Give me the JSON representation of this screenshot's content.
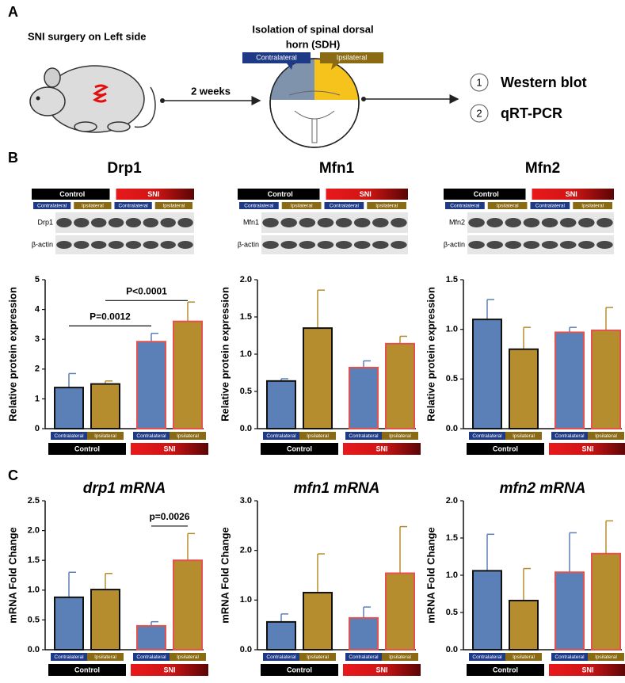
{
  "panel_labels": [
    "A",
    "B",
    "C"
  ],
  "panel_a": {
    "left": "SNI surgery on Left side",
    "arrow": "2 weeks",
    "center_lines": [
      "Isolation of spinal dorsal",
      "horn (SDH)"
    ],
    "contralateral": "Contralateral",
    "ipsilateral": "Ipsilateral",
    "methods": [
      {
        "number": "1",
        "label": "Western blot"
      },
      {
        "number": "2",
        "label": "qRT-PCR"
      }
    ]
  },
  "blots": [
    {
      "protein": "Drp1",
      "loading": "β-actin",
      "groups": [
        "Control",
        "SNI"
      ],
      "sides": [
        "Contralateral",
        "Ipsilateral",
        "Contralateral",
        "Ipsilateral"
      ]
    },
    {
      "protein": "Mfn1",
      "loading": "β-actin",
      "groups": [
        "Control",
        "SNI"
      ],
      "sides": [
        "Contralateral",
        "Ipsilateral",
        "Contralateral",
        "Ipsilateral"
      ]
    },
    {
      "protein": "Mfn2",
      "loading": "β-actin",
      "groups": [
        "Control",
        "SNI"
      ],
      "sides": [
        "Contralateral",
        "Ipsilateral",
        "Contralateral",
        "Ipsilateral"
      ]
    }
  ],
  "chart_data": [
    {
      "type": "bar",
      "title": "Drp1",
      "title_style": "bold",
      "ylabel": "Relative protein expression",
      "categories": [
        "Contralateral",
        "Ipsilateral",
        "Contralateral",
        "Ipsilateral"
      ],
      "groups": [
        "Control",
        "SNI"
      ],
      "values": [
        1.38,
        1.5,
        2.92,
        3.6
      ],
      "errors": [
        0.47,
        0.1,
        0.28,
        0.65
      ],
      "colors": [
        "#5b80b8",
        "#b58d2f",
        "#5b80b8",
        "#b58d2f"
      ],
      "edge_colors": [
        "#111111",
        "#111111",
        "#e3524e",
        "#e3524e"
      ],
      "ylim": [
        0,
        5
      ],
      "yticks": [
        0,
        1,
        2,
        3,
        4,
        5
      ],
      "annotations": [
        "P=0.0012",
        "P<0.0001"
      ]
    },
    {
      "type": "bar",
      "title": "Mfn1",
      "title_style": "bold",
      "ylabel": "Relative protein expression",
      "categories": [
        "Contralateral",
        "Ipsilateral",
        "Contralateral",
        "Ipsilateral"
      ],
      "groups": [
        "Control",
        "SNI"
      ],
      "values": [
        0.64,
        1.35,
        0.82,
        1.14
      ],
      "errors": [
        0.03,
        0.51,
        0.09,
        0.1
      ],
      "colors": [
        "#5b80b8",
        "#b58d2f",
        "#5b80b8",
        "#b58d2f"
      ],
      "edge_colors": [
        "#111111",
        "#111111",
        "#e3524e",
        "#e3524e"
      ],
      "ylim": [
        0,
        2
      ],
      "yticks": [
        {
          "value": 0,
          "label": "0.0"
        },
        {
          "value": 0.5,
          "label": "0.5"
        },
        {
          "value": 1,
          "label": "1.0"
        },
        {
          "value": 1.5,
          "label": "1.5"
        },
        {
          "value": 2,
          "label": "2.0"
        }
      ]
    },
    {
      "type": "bar",
      "title": "Mfn2",
      "title_style": "bold",
      "ylabel": "Relative protein expression",
      "categories": [
        "Contralateral",
        "Ipsilateral",
        "Contralateral",
        "Ipsilateral"
      ],
      "groups": [
        "Control",
        "SNI"
      ],
      "values": [
        1.1,
        0.8,
        0.97,
        0.99
      ],
      "errors": [
        0.2,
        0.22,
        0.05,
        0.23
      ],
      "colors": [
        "#5b80b8",
        "#b58d2f",
        "#5b80b8",
        "#b58d2f"
      ],
      "edge_colors": [
        "#111111",
        "#111111",
        "#e3524e",
        "#e3524e"
      ],
      "ylim": [
        0,
        1.5
      ],
      "yticks": [
        {
          "value": 0,
          "label": "0.0"
        },
        {
          "value": 0.5,
          "label": "0.5"
        },
        {
          "value": 1,
          "label": "1.0"
        },
        {
          "value": 1.5,
          "label": "1.5"
        }
      ]
    },
    {
      "type": "bar",
      "title": "drp1 mRNA",
      "title_style": "italic",
      "ylabel": "mRNA Fold Change",
      "categories": [
        "Contralateral",
        "Ipsilateral",
        "Contralateral",
        "Ipsilateral"
      ],
      "groups": [
        "Control",
        "SNI"
      ],
      "values": [
        0.88,
        1.01,
        0.4,
        1.5
      ],
      "errors": [
        0.42,
        0.27,
        0.07,
        0.45
      ],
      "colors": [
        "#5b80b8",
        "#b58d2f",
        "#5b80b8",
        "#b58d2f"
      ],
      "edge_colors": [
        "#111111",
        "#111111",
        "#e3524e",
        "#e3524e"
      ],
      "ylim": [
        0,
        2.5
      ],
      "yticks": [
        {
          "value": 0,
          "label": "0.0"
        },
        {
          "value": 0.5,
          "label": "0.5"
        },
        {
          "value": 1,
          "label": "1.0"
        },
        {
          "value": 1.5,
          "label": "1.5"
        },
        {
          "value": 2,
          "label": "2.0"
        },
        {
          "value": 2.5,
          "label": "2.5"
        }
      ],
      "annotations": [
        "p=0.0026"
      ]
    },
    {
      "type": "bar",
      "title": "mfn1 mRNA",
      "title_style": "italic",
      "ylabel": "mRNA Fold Change",
      "categories": [
        "Contralateral",
        "Ipsilateral",
        "Contralateral",
        "Ipsilateral"
      ],
      "groups": [
        "Control",
        "SNI"
      ],
      "values": [
        0.56,
        1.15,
        0.64,
        1.54
      ],
      "errors": [
        0.16,
        0.78,
        0.22,
        0.94
      ],
      "colors": [
        "#5b80b8",
        "#b58d2f",
        "#5b80b8",
        "#b58d2f"
      ],
      "edge_colors": [
        "#111111",
        "#111111",
        "#e3524e",
        "#e3524e"
      ],
      "ylim": [
        0,
        3
      ],
      "yticks": [
        {
          "value": 0,
          "label": "0.0"
        },
        {
          "value": 1,
          "label": "1.0"
        },
        {
          "value": 2,
          "label": "2.0"
        },
        {
          "value": 3,
          "label": "3.0"
        }
      ]
    },
    {
      "type": "bar",
      "title": "mfn2 mRNA",
      "title_style": "italic",
      "ylabel": "mRNA Fold Change",
      "categories": [
        "Contralateral",
        "Ipsilateral",
        "Contralateral",
        "Ipsilateral"
      ],
      "groups": [
        "Control",
        "SNI"
      ],
      "values": [
        1.06,
        0.66,
        1.04,
        1.29
      ],
      "errors": [
        0.49,
        0.43,
        0.53,
        0.44
      ],
      "colors": [
        "#5b80b8",
        "#b58d2f",
        "#5b80b8",
        "#b58d2f"
      ],
      "edge_colors": [
        "#111111",
        "#111111",
        "#e3524e",
        "#e3524e"
      ],
      "ylim": [
        0,
        2
      ],
      "yticks": [
        {
          "value": 0,
          "label": "0.0"
        },
        {
          "value": 0.5,
          "label": "0.5"
        },
        {
          "value": 1,
          "label": "1.0"
        },
        {
          "value": 1.5,
          "label": "1.5"
        },
        {
          "value": 2,
          "label": "2.0"
        }
      ]
    }
  ]
}
